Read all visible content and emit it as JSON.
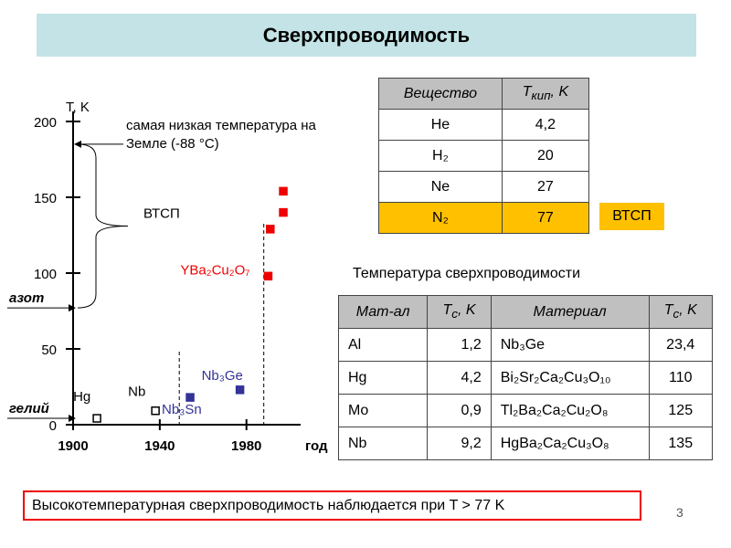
{
  "header": {
    "title": "Сверхпроводимость"
  },
  "chart_data": {
    "type": "scatter",
    "y_label": "T, K",
    "x_label": "год",
    "xlim": [
      1900,
      2005
    ],
    "ylim": [
      0,
      200
    ],
    "xticks": [
      1900,
      1940,
      1980
    ],
    "yticks": [
      0,
      50,
      100,
      150,
      200
    ],
    "x": [
      1911,
      1938,
      1954,
      1977,
      1990,
      1991,
      1997,
      1997
    ],
    "values": [
      4.2,
      9.2,
      18,
      23,
      98,
      129,
      140,
      154
    ],
    "colors": [
      "#000000",
      "#000000",
      "#333399",
      "#333399",
      "#ee0000",
      "#ee0000",
      "#ee0000",
      "#ee0000"
    ],
    "filled": [
      false,
      false,
      true,
      true,
      true,
      true,
      true,
      true
    ],
    "point_labels": [
      "Hg",
      "Nb",
      "Nb₃Sn",
      "Nb₃Ge",
      "YBa₂Cu₂O₇",
      null,
      null,
      null
    ],
    "reference_x": [
      1949,
      1988
    ],
    "annotations": [
      {
        "lines": [
          "самая низкая температура на",
          "Земле (-88 °C)"
        ],
        "y": 185
      },
      {
        "lines": [
          "азот"
        ],
        "y": 77
      },
      {
        "lines": [
          "гелий"
        ],
        "y": 4.2
      }
    ],
    "bracket_label": "ВТСП"
  },
  "table1": {
    "header": [
      {
        "text": "Вещество"
      },
      {
        "text": "T",
        "sub": "кип",
        "rest": ", K"
      }
    ],
    "rows": [
      [
        "He",
        "4,2"
      ],
      [
        "H₂",
        "20"
      ],
      [
        "Ne",
        "27"
      ],
      [
        "N₂",
        "77"
      ]
    ],
    "highlight_row": 3,
    "highlight_color": "#ffc000",
    "tag": "ВТСП"
  },
  "table2": {
    "caption": "Температура сверхпроводимости",
    "header": [
      {
        "text": "Мат-ал"
      },
      {
        "text": "T",
        "sub": "c",
        "rest": ", K"
      },
      {
        "text": "Материал"
      },
      {
        "text": "T",
        "sub": "c",
        "rest": ", K"
      }
    ],
    "rows": [
      [
        "Al",
        "1,2",
        "Nb₃Ge",
        "23,4"
      ],
      [
        "Hg",
        "4,2",
        "Bi₂Sr₂Ca₂Cu₃O₁₀",
        "110"
      ],
      [
        "Mo",
        "0,9",
        "Tl₂Ba₂Ca₂Cu₂O₈",
        "125"
      ],
      [
        "Nb",
        "9,2",
        "HgBa₂Ca₂Cu₃O₈",
        "135"
      ]
    ]
  },
  "footer": {
    "note": "Высокотемпературная сверхпроводимость наблюдается при T > 77 K",
    "page": "3"
  }
}
